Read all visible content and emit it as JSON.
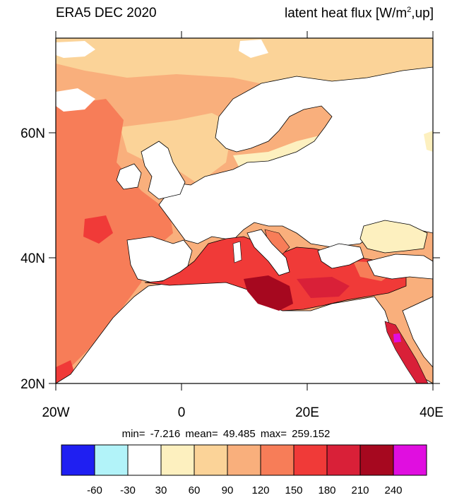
{
  "title": {
    "left": "ERA5 DEC 2020",
    "right_main": "latent heat flux [W/m",
    "right_sup": "2",
    "right_tail": ",up]"
  },
  "map": {
    "projection": "lat-lon",
    "extent": {
      "lon": [
        -20,
        40
      ],
      "lat": [
        20,
        75
      ]
    },
    "lat_labels": [
      "60N",
      "40N",
      "20N"
    ],
    "lon_labels": [
      "20W",
      "0",
      "20E",
      "40E"
    ],
    "land_fill": "#ffffff"
  },
  "stats": {
    "text": "min=  -7.216  mean=  49.485  max= 259.152",
    "min": -7.216,
    "mean": 49.485,
    "max": 259.152
  },
  "colorbar": {
    "colors": [
      "#1f1ff2",
      "#b2f3f9",
      "#ffffff",
      "#fdf0bf",
      "#fbd398",
      "#f9af7c",
      "#f77d58",
      "#f03a38",
      "#d92038",
      "#a6081f",
      "#e00ee0"
    ],
    "labels": [
      "-60",
      "-30",
      "30",
      "60",
      "90",
      "120",
      "150",
      "180",
      "210",
      "240"
    ]
  }
}
